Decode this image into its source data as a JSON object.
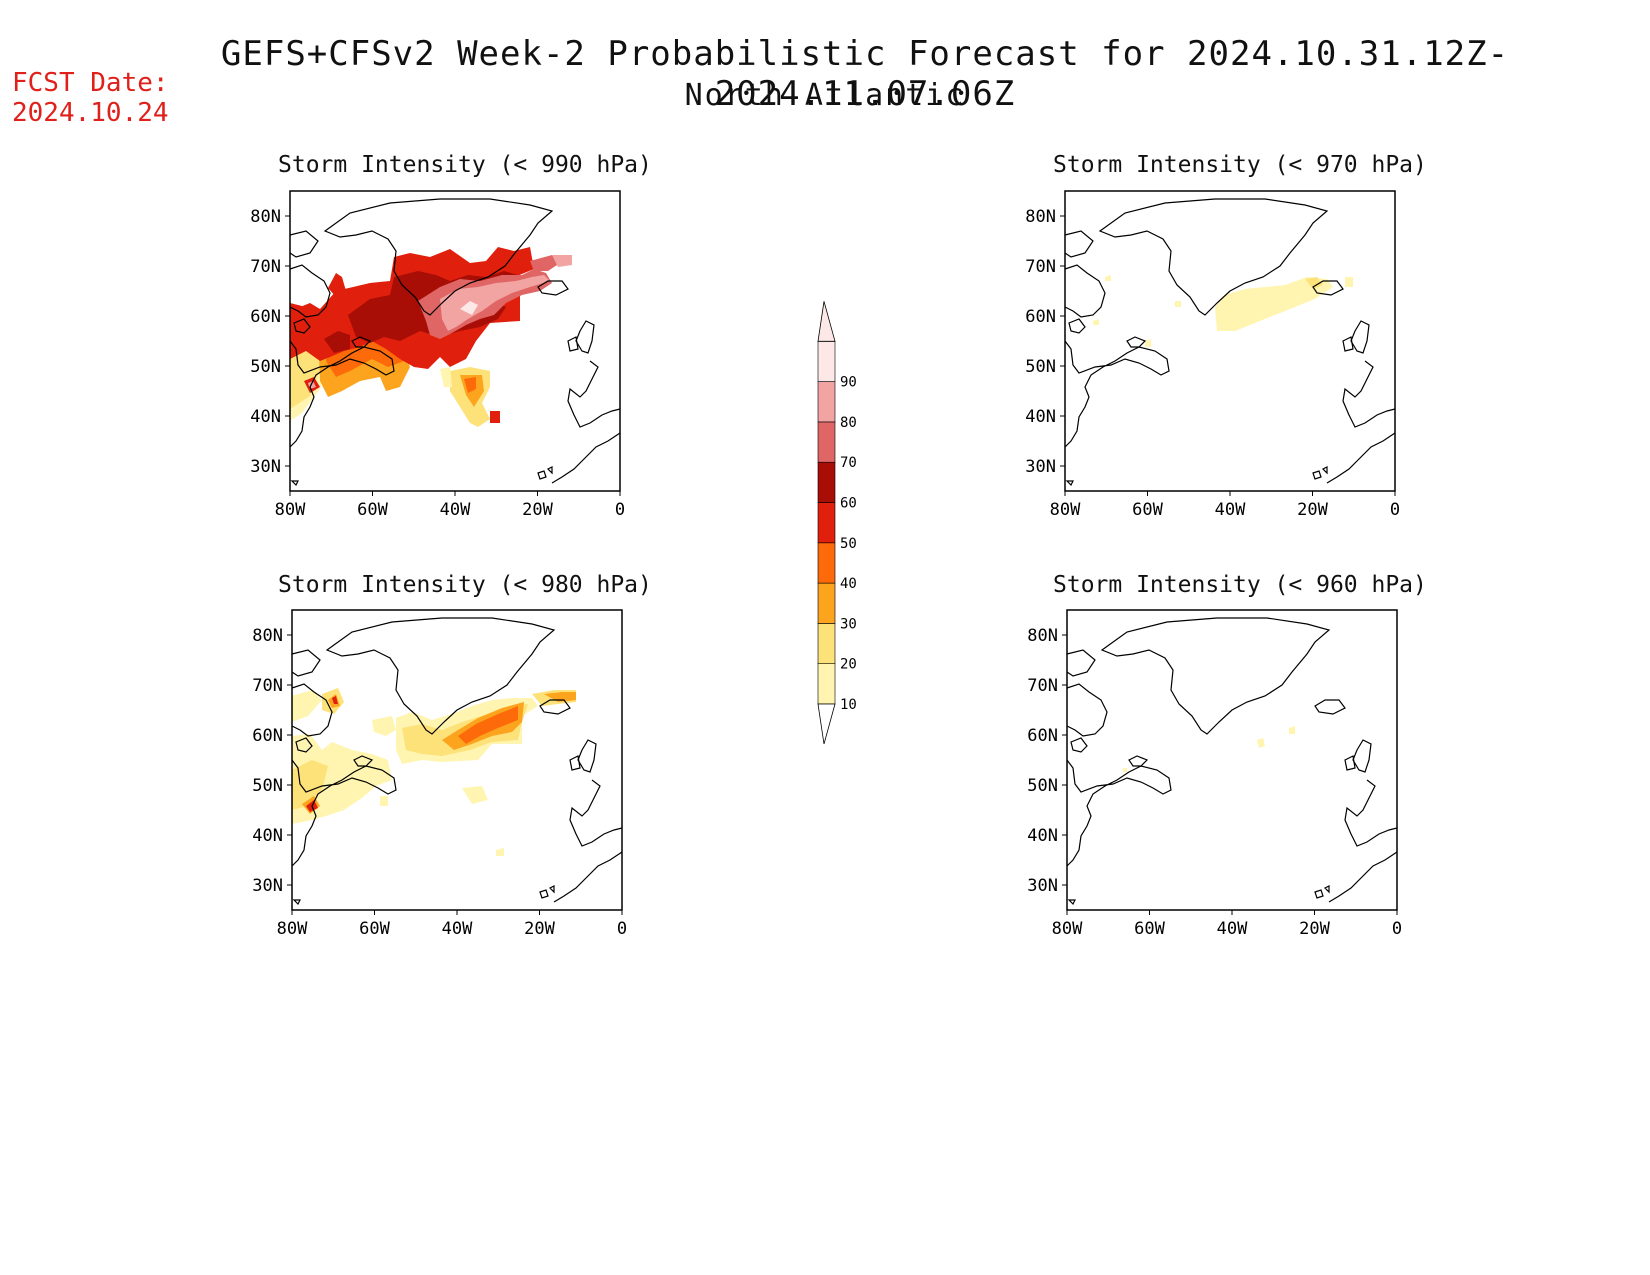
{
  "header": {
    "title": "GEFS+CFSv2 Week-2 Probabilistic Forecast for 2024.10.31.12Z-2024.11.07.06Z",
    "region": "North Atlantic",
    "fcst_label": "FCST Date:",
    "fcst_date": "2024.10.24"
  },
  "panels": [
    {
      "title": "Storm Intensity (< 990 hPa)"
    },
    {
      "title": "Storm Intensity (< 970 hPa)"
    },
    {
      "title": "Storm Intensity (< 980 hPa)"
    },
    {
      "title": "Storm Intensity (< 960 hPa)"
    }
  ],
  "axes": {
    "lat_labels": [
      "80N",
      "70N",
      "60N",
      "50N",
      "40N",
      "30N"
    ],
    "lon_labels": [
      "80W",
      "60W",
      "40W",
      "20W",
      "0"
    ]
  },
  "colorbar": {
    "levels": [
      "10",
      "20",
      "30",
      "40",
      "50",
      "60",
      "70",
      "80",
      "90"
    ],
    "colors": [
      "#fff5b0",
      "#fde27a",
      "#fda41f",
      "#fd6a0a",
      "#e0200d",
      "#a80d06",
      "#df6664",
      "#f2a4a2",
      "#fde8e8",
      "#ffffff"
    ]
  }
}
